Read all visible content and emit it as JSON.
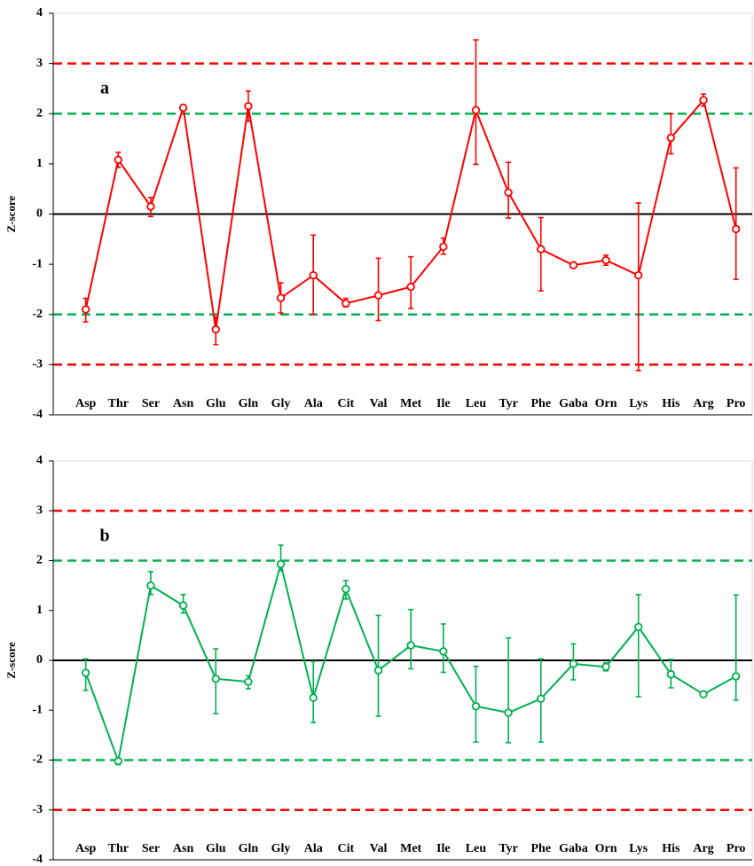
{
  "chart_data": [
    {
      "type": "line",
      "panel_label": "a",
      "ylabel": "Z-score",
      "categories": [
        "Asp",
        "Thr",
        "Ser",
        "Asn",
        "Glu",
        "Gln",
        "Gly",
        "Ala",
        "Cit",
        "Val",
        "Met",
        "Ile",
        "Leu",
        "Tyr",
        "Phe",
        "Gaba",
        "Orn",
        "Lys",
        "His",
        "Arg",
        "Pro"
      ],
      "series": [
        {
          "color": "#ff0000",
          "values": [
            -1.9,
            1.08,
            0.15,
            2.12,
            -2.3,
            2.15,
            -1.67,
            -1.22,
            -1.78,
            -1.62,
            -1.45,
            -0.65,
            2.07,
            0.43,
            -0.7,
            -1.02,
            -0.92,
            -1.22,
            1.52,
            2.27,
            -0.3
          ],
          "errors_plus": [
            0.22,
            0.15,
            0.18,
            0.05,
            0.25,
            0.3,
            0.3,
            0.8,
            0.1,
            0.74,
            0.6,
            0.17,
            1.4,
            0.6,
            0.63,
            0.03,
            0.1,
            1.44,
            0.48,
            0.12,
            1.22
          ],
          "errors_minus": [
            0.25,
            0.15,
            0.2,
            0.05,
            0.3,
            0.3,
            0.3,
            0.78,
            0.07,
            0.5,
            0.43,
            0.15,
            1.08,
            0.51,
            0.83,
            0.03,
            0.1,
            1.9,
            0.32,
            0.12,
            1.0
          ]
        }
      ],
      "reference_lines": [
        {
          "value": 3,
          "color": "#ff0000",
          "style": "dashed"
        },
        {
          "value": 2,
          "color": "#00b050",
          "style": "dashed"
        },
        {
          "value": 0,
          "color": "#000000",
          "style": "solid"
        },
        {
          "value": -2,
          "color": "#00b050",
          "style": "dashed"
        },
        {
          "value": -3,
          "color": "#ff0000",
          "style": "dashed"
        }
      ],
      "ylim": [
        -4,
        4
      ],
      "yticks": [
        -4,
        -3,
        -2,
        -1,
        0,
        1,
        2,
        3,
        4
      ]
    },
    {
      "type": "line",
      "panel_label": "b",
      "ylabel": "Z-score",
      "categories": [
        "Asp",
        "Thr",
        "Ser",
        "Asn",
        "Glu",
        "Gln",
        "Gly",
        "Ala",
        "Cit",
        "Val",
        "Met",
        "Ile",
        "Leu",
        "Tyr",
        "Phe",
        "Gaba",
        "Orn",
        "Lys",
        "His",
        "Arg",
        "Pro"
      ],
      "series": [
        {
          "color": "#00b050",
          "values": [
            -0.25,
            -2.02,
            1.5,
            1.1,
            -0.37,
            -0.43,
            1.93,
            -0.75,
            1.43,
            -0.2,
            0.3,
            0.18,
            -0.92,
            -1.05,
            -0.77,
            -0.07,
            -0.13,
            0.67,
            -0.28,
            -0.68,
            -0.32
          ],
          "errors_plus": [
            0.28,
            0.05,
            0.28,
            0.22,
            0.6,
            0.12,
            0.38,
            0.73,
            0.17,
            1.1,
            0.72,
            0.55,
            0.8,
            1.5,
            0.8,
            0.4,
            0.08,
            0.65,
            0.3,
            0.03,
            1.63
          ],
          "errors_minus": [
            0.35,
            0.07,
            0.18,
            0.15,
            0.7,
            0.14,
            0.13,
            0.5,
            0.2,
            0.92,
            0.47,
            0.42,
            0.72,
            0.6,
            0.87,
            0.32,
            0.08,
            1.4,
            0.27,
            0.03,
            0.48
          ]
        }
      ],
      "reference_lines": [
        {
          "value": 3,
          "color": "#ff0000",
          "style": "dashed"
        },
        {
          "value": 2,
          "color": "#00b050",
          "style": "dashed"
        },
        {
          "value": 0,
          "color": "#000000",
          "style": "solid"
        },
        {
          "value": -2,
          "color": "#00b050",
          "style": "dashed"
        },
        {
          "value": -3,
          "color": "#ff0000",
          "style": "dashed"
        }
      ],
      "ylim": [
        -4,
        4
      ],
      "yticks": [
        -4,
        -3,
        -2,
        -1,
        0,
        1,
        2,
        3,
        4
      ]
    }
  ]
}
